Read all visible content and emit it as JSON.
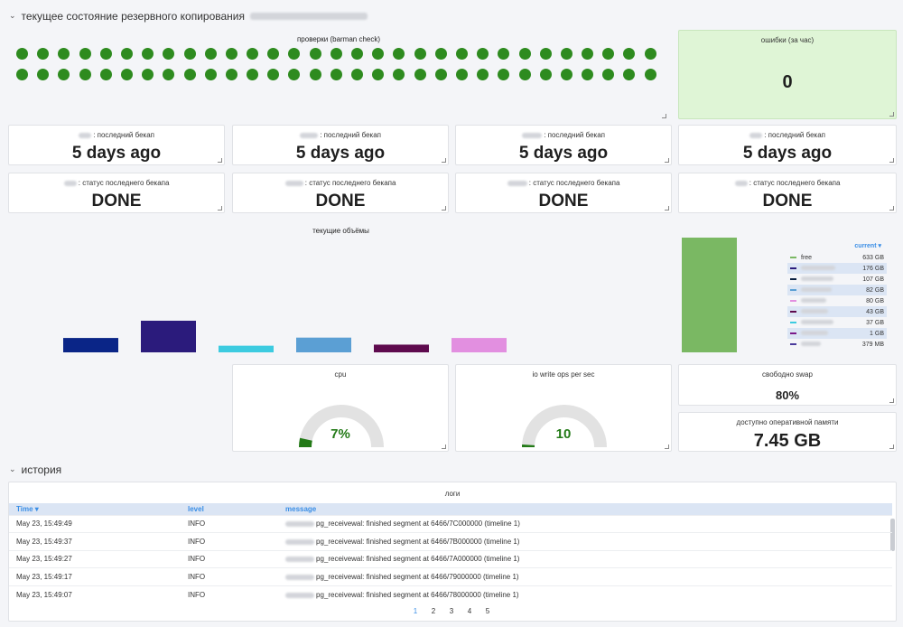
{
  "rows": {
    "backup_title": "текущее состояние резервного копирования",
    "history_title": "история"
  },
  "checks": {
    "title": "проверки (barman check)",
    "ok_count": 62,
    "ok_color": "#2e8b1f"
  },
  "errors": {
    "title": "ошибки (за час)",
    "value": "0"
  },
  "last_backup": [
    {
      "label": ": последний бекап",
      "value": "5 days ago"
    },
    {
      "label": ": последний бекап",
      "value": "5 days ago"
    },
    {
      "label": ": последний бекап",
      "value": "5 days ago"
    },
    {
      "label": ": последний бекап",
      "value": "5 days ago"
    }
  ],
  "backup_status": [
    {
      "label": ": статус последнего бекапа",
      "value": "DONE"
    },
    {
      "label": ": статус последнего бекапа",
      "value": "DONE"
    },
    {
      "label": ": статус последнего бекапа",
      "value": "DONE"
    },
    {
      "label": ": статус последнего бекапа",
      "value": "DONE"
    }
  ],
  "volumes": {
    "title": "текущие объёмы",
    "legend_header": "current",
    "series": [
      {
        "name": "free",
        "value": "633 GB",
        "color": "#7ab863"
      },
      {
        "name": "",
        "value": "176 GB",
        "color": "#2b1b7c"
      },
      {
        "name": "",
        "value": "107 GB",
        "color": "#0a1f3f"
      },
      {
        "name": "",
        "value": "82 GB",
        "color": "#5b9fd4"
      },
      {
        "name": "",
        "value": "80 GB",
        "color": "#e28fe0"
      },
      {
        "name": "",
        "value": "43 GB",
        "color": "#5e0a4e"
      },
      {
        "name": "",
        "value": "37 GB",
        "color": "#3ccbe0"
      },
      {
        "name": "",
        "value": "1 GB",
        "color": "#7a1a8a"
      },
      {
        "name": "",
        "value": "379 MB",
        "color": "#4a3a9c"
      }
    ],
    "bars": [
      {
        "value": 80,
        "color": "#0a2587"
      },
      {
        "value": 176,
        "color": "#2b1b7c"
      },
      {
        "value": 37,
        "color": "#3ccbe0"
      },
      {
        "value": 82,
        "color": "#5b9fd4"
      },
      {
        "value": 43,
        "color": "#5e0a4e"
      },
      {
        "value": 80,
        "color": "#e28fe0"
      }
    ],
    "free_bar": {
      "value": 633,
      "color": "#7ab863"
    }
  },
  "cpu": {
    "title": "cpu",
    "value": "7%",
    "fraction": 0.07
  },
  "io": {
    "title": "io write ops per sec",
    "value": "10",
    "fraction": 0.02
  },
  "swap": {
    "title": "свободно swap",
    "value": "80%"
  },
  "mem": {
    "title": "доступно оперативной памяти",
    "value": "7.45 GB"
  },
  "logs": {
    "title": "логи",
    "columns": [
      "Time ▾",
      "level",
      "message"
    ],
    "rows": [
      {
        "time": "May 23, 15:49:49",
        "level": "INFO",
        "message": "pg_receivewal: finished segment at 6466/7C000000 (timeline 1)"
      },
      {
        "time": "May 23, 15:49:37",
        "level": "INFO",
        "message": "pg_receivewal: finished segment at 6466/7B000000 (timeline 1)"
      },
      {
        "time": "May 23, 15:49:27",
        "level": "INFO",
        "message": "pg_receivewal: finished segment at 6466/7A000000 (timeline 1)"
      },
      {
        "time": "May 23, 15:49:17",
        "level": "INFO",
        "message": "pg_receivewal: finished segment at 6466/79000000 (timeline 1)"
      },
      {
        "time": "May 23, 15:49:07",
        "level": "INFO",
        "message": "pg_receivewal: finished segment at 6466/78000000 (timeline 1)"
      }
    ],
    "pages": [
      "1",
      "2",
      "3",
      "4",
      "5"
    ]
  }
}
